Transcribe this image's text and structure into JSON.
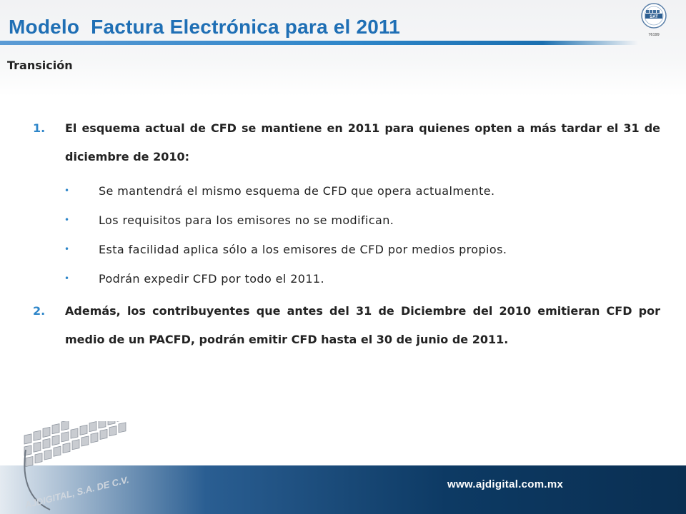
{
  "header": {
    "title": "Modelo  Factura Electrónica para el 2011",
    "subtitle": "Transición",
    "seal": {
      "top_text": "SAT",
      "bottom_text": "76199"
    }
  },
  "content": {
    "item1": {
      "number": "1.",
      "text": "El esquema actual de CFD se mantiene en 2011 para quienes opten a más tardar el 31 de diciembre de 2010:",
      "bullets": [
        "Se mantendrá el mismo esquema de CFD que opera actualmente.",
        "Los requisitos para los emisores no se modifican.",
        "Esta facilidad aplica sólo a los emisores de CFD por medios propios.",
        "Podrán expedir CFD por todo el 2011."
      ]
    },
    "item2": {
      "number": "2.",
      "text": "Además, los contribuyentes que antes del 31 de Diciembre del 2010 emitieran CFD por medio de un PACFD, podrán emitir CFD hasta el 30 de junio de 2011."
    }
  },
  "footer": {
    "url": "www.ajdigital.com.mx",
    "logo_text": "AJDIGITAL, S.A. DE C.V."
  },
  "colors": {
    "title_blue": "#1f6fb5",
    "accent_blue": "#2e86c9",
    "footer_dark": "#0d3a64"
  }
}
